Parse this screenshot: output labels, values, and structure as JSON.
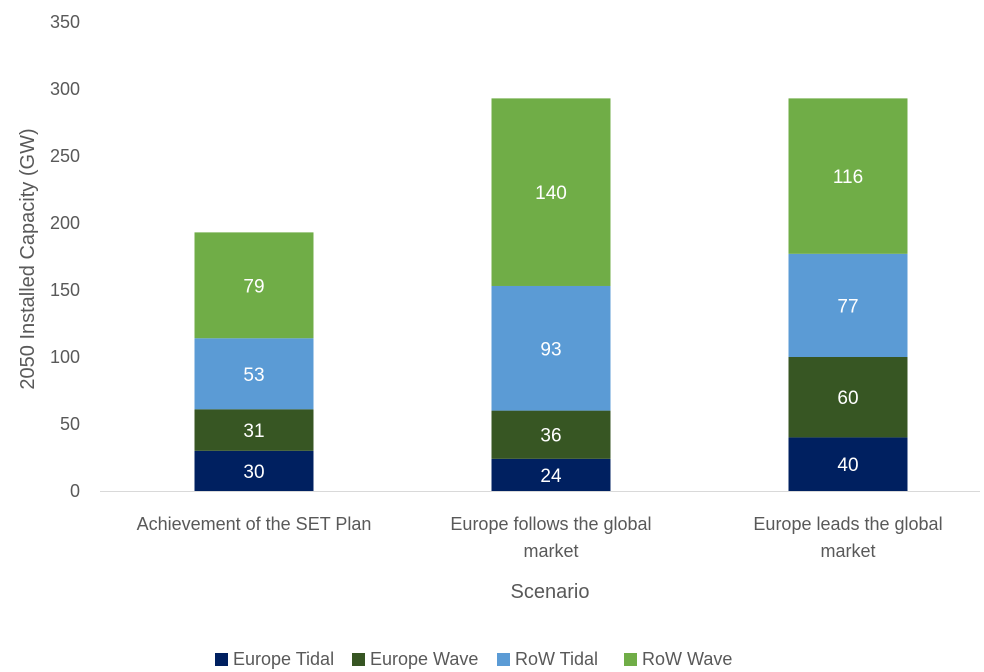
{
  "chart_data": {
    "type": "bar",
    "stacked": true,
    "title": "",
    "xlabel": "Scenario",
    "ylabel": "2050 Installed Capacity (GW)",
    "ylim": [
      0,
      350
    ],
    "yticks": [
      0,
      50,
      100,
      150,
      200,
      250,
      300,
      350
    ],
    "grid": false,
    "legend_position": "bottom",
    "categories": [
      [
        "Achievement of the SET Plan"
      ],
      [
        "Europe follows the global",
        "market"
      ],
      [
        "Europe leads the global",
        "market"
      ]
    ],
    "series": [
      {
        "name": "Europe Tidal",
        "color": "#002060",
        "label_color": "#ffffff",
        "values": [
          30,
          24,
          40
        ]
      },
      {
        "name": "Europe Wave",
        "color": "#375623",
        "label_color": "#ffffff",
        "values": [
          31,
          36,
          60
        ]
      },
      {
        "name": "RoW Tidal",
        "color": "#5b9bd5",
        "label_color": "#ffffff",
        "values": [
          53,
          93,
          77
        ]
      },
      {
        "name": "RoW Wave",
        "color": "#70ad47",
        "label_color": "#ffffff",
        "values": [
          79,
          140,
          116
        ]
      }
    ],
    "axis_line_color": "#d9d9d9"
  }
}
